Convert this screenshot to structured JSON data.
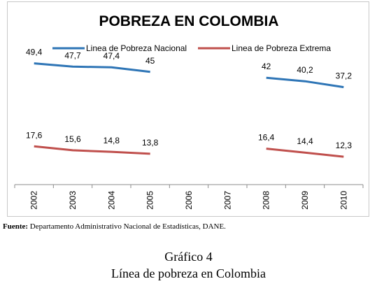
{
  "chart_data": {
    "type": "line",
    "title": "POBREZA EN COLOMBIA",
    "categories": [
      "2002",
      "2003",
      "2004",
      "2005",
      "2006",
      "2007",
      "2008",
      "2009",
      "2010"
    ],
    "series": [
      {
        "name": "Linea de Pobreza Nacional",
        "color": "#2e75b6",
        "values": [
          49.4,
          47.7,
          47.4,
          45,
          null,
          null,
          42,
          40.2,
          37.2
        ],
        "labels": [
          "49,4",
          "47,7",
          "47,4",
          "45",
          "",
          "",
          "42",
          "40,2",
          "37,2"
        ]
      },
      {
        "name": "Linea de Pobreza Extrema",
        "color": "#c0504d",
        "values": [
          17.6,
          15.6,
          14.8,
          13.8,
          null,
          null,
          16.4,
          14.4,
          12.3
        ],
        "labels": [
          "17,6",
          "15,6",
          "14,8",
          "13,8",
          "",
          "",
          "16,4",
          "14,4",
          "12,3"
        ]
      }
    ],
    "ylim": [
      0,
      60
    ],
    "grid": false,
    "legend_position": "top"
  },
  "source": {
    "label": "Fuente:",
    "text": "Departamento Administrativo Nacional de Estadísticas, DANE."
  },
  "caption": {
    "number": "Gráfico 4",
    "title": "Línea de pobreza en Colombia"
  }
}
